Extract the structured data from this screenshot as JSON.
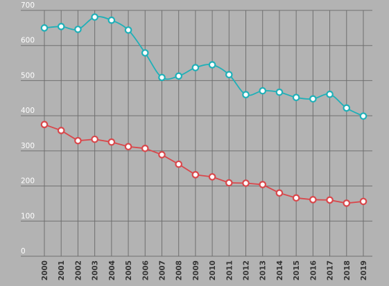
{
  "chart_data": {
    "type": "line",
    "title": "",
    "xlabel": "",
    "ylabel": "",
    "grid": true,
    "ylim": [
      0,
      700
    ],
    "y_ticks": [
      0,
      100,
      200,
      300,
      400,
      500,
      600,
      700
    ],
    "categories": [
      "2000",
      "2001",
      "2002",
      "2003",
      "2004",
      "2005",
      "2006",
      "2007",
      "2008",
      "2009",
      "2010",
      "2011",
      "2012",
      "2013",
      "2014",
      "2015",
      "2016",
      "2017",
      "2018",
      "2019"
    ],
    "series": [
      {
        "color": "#1fb0b8",
        "curve": "smooth",
        "values": [
          650,
          654,
          646,
          681,
          672,
          644,
          579,
          509,
          513,
          537,
          545,
          517,
          460,
          471,
          467,
          452,
          448,
          461,
          422,
          399
        ]
      },
      {
        "color": "#d9474b",
        "curve": "straight",
        "values": [
          375,
          358,
          329,
          333,
          325,
          312,
          307,
          289,
          262,
          232,
          226,
          209,
          208,
          204,
          180,
          166,
          161,
          160,
          151,
          156
        ]
      }
    ],
    "style": {
      "background": "#b3b3b3",
      "grid_color": "#6f6f6f",
      "y_tick_color": "#ffffff",
      "x_tick_color": "#333333",
      "marker_fill": "#ffffff"
    }
  }
}
